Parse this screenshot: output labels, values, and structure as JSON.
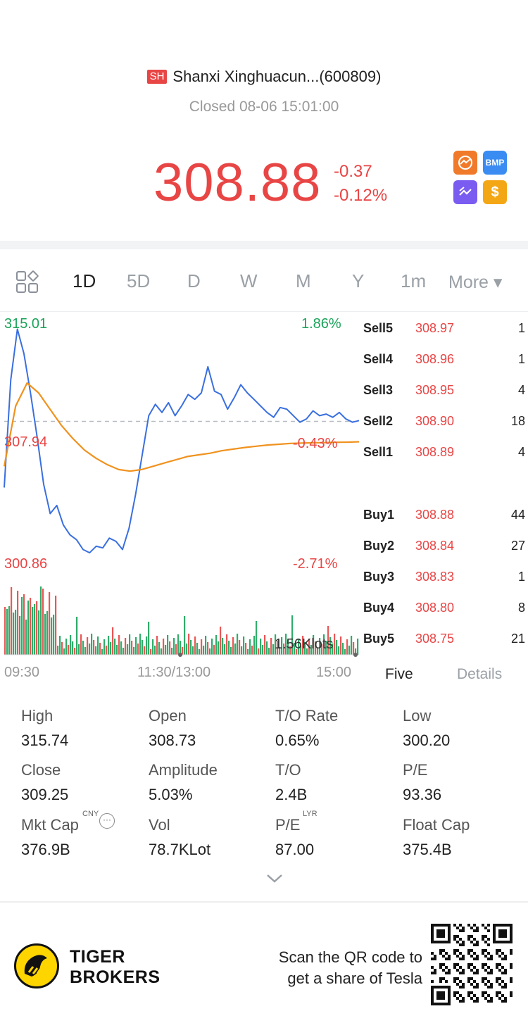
{
  "header": {
    "market_badge": "SH",
    "stock_name": "Shanxi Xinghuacun...(600809)",
    "status": "Closed 08-06 15:01:00",
    "price": "308.88",
    "change": "-0.37",
    "change_pct": "-0.12%",
    "badges": [
      {
        "name": "trend-icon",
        "text": "⦸",
        "color": "#f07a2a"
      },
      {
        "name": "bmp-icon",
        "text": "BMP",
        "color": "#3b8cf2"
      },
      {
        "name": "zigzag-icon",
        "text": "⩘",
        "color": "#7a5cf0"
      },
      {
        "name": "dollar-icon",
        "text": "$",
        "color": "#f4a715"
      }
    ]
  },
  "tabs": {
    "items": [
      "1D",
      "5D",
      "D",
      "W",
      "M",
      "Y",
      "1m"
    ],
    "active": "1D",
    "more": "More ▾"
  },
  "chart": {
    "max_price": "315.01",
    "max_pct": "1.86%",
    "prev_close": "307.94",
    "prev_close_pct": "-0.43%",
    "min_price": "300.86",
    "min_pct": "-2.71%",
    "volume_label": "1.56Klots",
    "time_labels": [
      "09:30",
      "11:30/13:00",
      "15:00"
    ]
  },
  "chart_data": {
    "type": "line",
    "title": "",
    "ylim": [
      300.86,
      315.01
    ],
    "reference_line": 309.25,
    "series": [
      {
        "name": "",
        "color": "#3a6fe0",
        "values": [
          305.2,
          311.8,
          314.9,
          313.4,
          311.0,
          308.3,
          305.4,
          303.6,
          304.1,
          302.9,
          302.3,
          302.0,
          301.4,
          301.2,
          301.6,
          301.5,
          302.1,
          301.9,
          301.4,
          302.7,
          304.8,
          307.2,
          309.6,
          310.3,
          309.8,
          310.4,
          309.6,
          310.2,
          310.9,
          310.6,
          311.0,
          312.6,
          311.1,
          310.9,
          310.0,
          310.7,
          311.5,
          311.0,
          310.6,
          310.2,
          309.8,
          309.5,
          310.1,
          310.0,
          309.6,
          309.2,
          309.4,
          309.9,
          309.6,
          309.7,
          309.5,
          309.8,
          309.4,
          309.2,
          309.3
        ]
      },
      {
        "name": "",
        "color": "#f0921e",
        "values": [
          306.5,
          310.2,
          311.6,
          311.0,
          310.0,
          309.0,
          308.2,
          307.5,
          307.0,
          306.6,
          306.3,
          306.2,
          306.3,
          306.5,
          306.7,
          306.9,
          307.1,
          307.2,
          307.3,
          307.45,
          307.55,
          307.65,
          307.73,
          307.8,
          307.85,
          307.9,
          307.92,
          307.94,
          307.95,
          307.97,
          307.98,
          308.0
        ]
      }
    ]
  },
  "order_book": {
    "sells": [
      {
        "label": "Sell5",
        "price": "308.97",
        "qty": "1"
      },
      {
        "label": "Sell4",
        "price": "308.96",
        "qty": "1"
      },
      {
        "label": "Sell3",
        "price": "308.95",
        "qty": "4"
      },
      {
        "label": "Sell2",
        "price": "308.90",
        "qty": "18"
      },
      {
        "label": "Sell1",
        "price": "308.89",
        "qty": "4"
      }
    ],
    "buys": [
      {
        "label": "Buy1",
        "price": "308.88",
        "qty": "44"
      },
      {
        "label": "Buy2",
        "price": "308.84",
        "qty": "27"
      },
      {
        "label": "Buy3",
        "price": "308.83",
        "qty": "1"
      },
      {
        "label": "Buy4",
        "price": "308.80",
        "qty": "8"
      },
      {
        "label": "Buy5",
        "price": "308.75",
        "qty": "21"
      }
    ],
    "tab_five": "Five",
    "tab_details": "Details"
  },
  "stats": [
    {
      "label": "High",
      "value": "315.74"
    },
    {
      "label": "Open",
      "value": "308.73"
    },
    {
      "label": "T/O Rate",
      "value": "0.65%"
    },
    {
      "label": "Low",
      "value": "300.20"
    },
    {
      "label": "Close",
      "value": "309.25"
    },
    {
      "label": "Amplitude",
      "value": "5.03%"
    },
    {
      "label": "T/O",
      "value": "2.4B"
    },
    {
      "label": "P/E",
      "value": "93.36"
    },
    {
      "label": "Mkt Cap",
      "value": "376.9B"
    },
    {
      "label": "Vol",
      "value": "78.7KLot"
    },
    {
      "label": "P/E",
      "value": "87.00"
    },
    {
      "label": "Float Cap",
      "value": "375.4B"
    }
  ],
  "stat_sups": {
    "mkt_cap": "CNY",
    "pe_lyr": "LYR"
  },
  "footer": {
    "brand_line1": "TIGER",
    "brand_line2": "BROKERS",
    "scan_line1": "Scan the QR code to",
    "scan_line2": "get a share of Tesla"
  }
}
